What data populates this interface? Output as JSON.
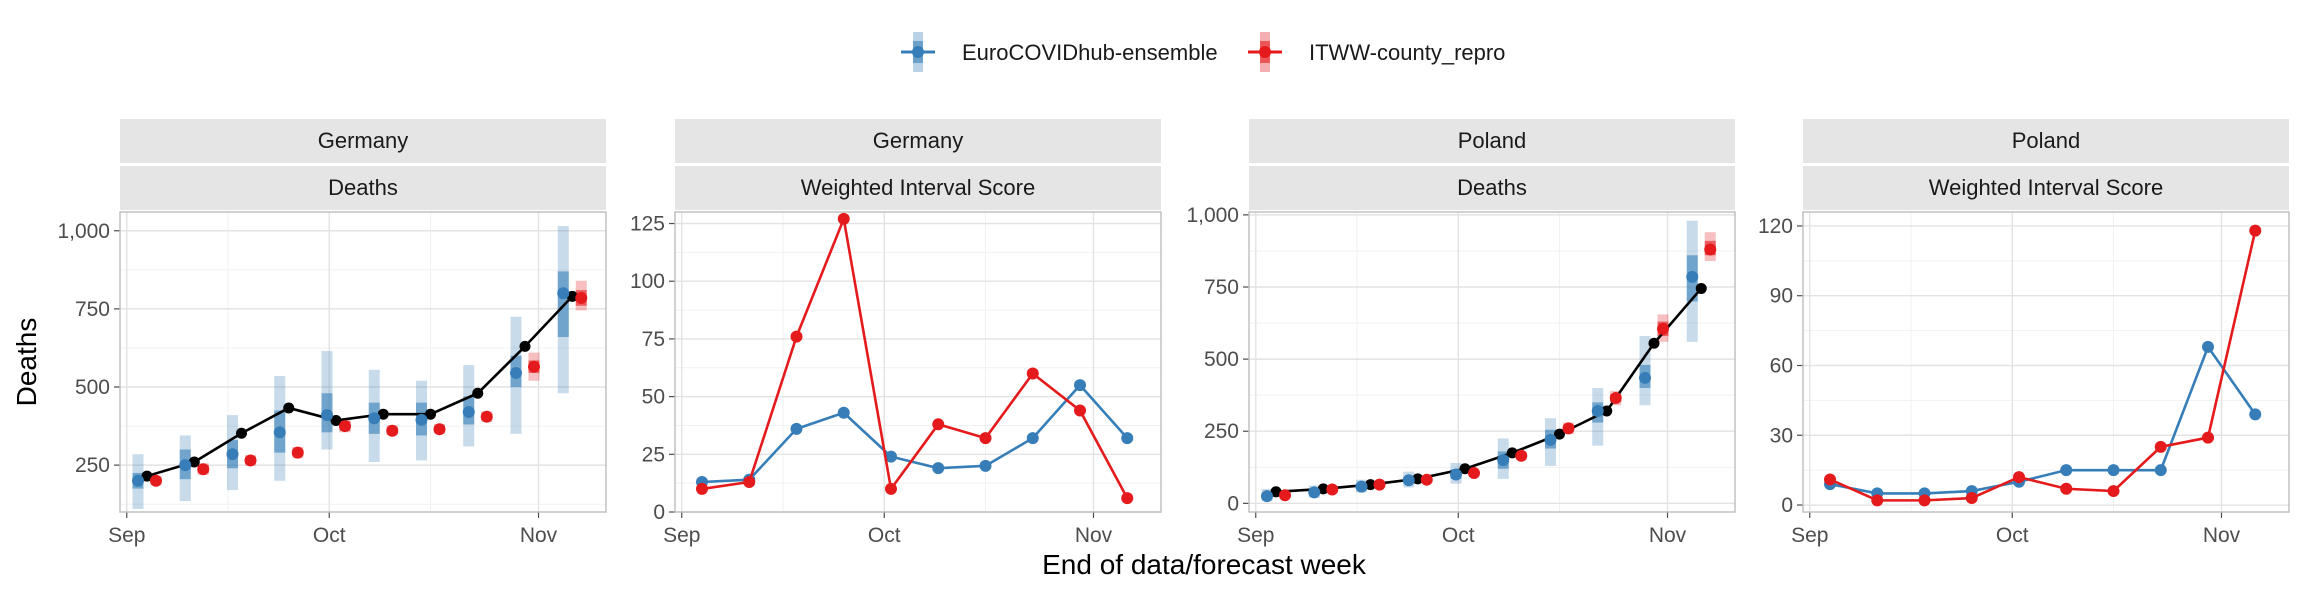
{
  "chart_data": {
    "type": "line",
    "xlabel": "End of data/forecast week",
    "x_dates": [
      "2021-09-04",
      "2021-09-11",
      "2021-09-18",
      "2021-09-25",
      "2021-10-02",
      "2021-10-09",
      "2021-10-16",
      "2021-10-23",
      "2021-10-30",
      "2021-11-06"
    ],
    "x_ticks": [
      {
        "label": "Sep",
        "date": "2021-09-01"
      },
      {
        "label": "Oct",
        "date": "2021-10-01"
      },
      {
        "label": "Nov",
        "date": "2021-11-01"
      }
    ],
    "xlim": [
      "2021-08-31",
      "2021-11-11"
    ],
    "legend": {
      "position": "top",
      "entries": [
        {
          "name": "EuroCOVIDhub-ensemble",
          "color": "#377eb8"
        },
        {
          "name": "ITWW-county_repro",
          "color": "#e41a1c"
        }
      ]
    },
    "colors": {
      "observed": "#000000",
      "ensemble": "#377eb8",
      "itww": "#e41a1c"
    },
    "grid": true,
    "panels": [
      {
        "strip": [
          "Germany",
          "Deaths"
        ],
        "ylabel": "Deaths",
        "ylim": [
          100,
          1060
        ],
        "yticks": [
          250,
          500,
          750,
          1000
        ],
        "yticklabels": [
          "250",
          "500",
          "750",
          "1,000"
        ],
        "observed": [
          215,
          260,
          352,
          433,
          393,
          413,
          413,
          480,
          630,
          790
        ],
        "series": [
          {
            "name": "EuroCOVIDhub-ensemble",
            "median": [
              200,
              250,
              285,
              355,
              410,
              400,
              395,
              420,
              545,
              800
            ],
            "q25": [
              175,
              205,
              240,
              290,
              355,
              350,
              345,
              380,
              500,
              660
            ],
            "q75": [
              225,
              300,
              330,
              425,
              480,
              450,
              450,
              470,
              600,
              870
            ],
            "q05": [
              110,
              135,
              170,
              200,
              300,
              260,
              265,
              310,
              350,
              480
            ],
            "q95": [
              285,
              345,
              410,
              535,
              615,
              555,
              520,
              570,
              725,
              1015
            ]
          },
          {
            "name": "ITWW-county_repro",
            "median": [
              200,
              237,
              265,
              290,
              375,
              360,
              365,
              405,
              565,
              785
            ],
            "q25": [
              190,
              225,
              255,
              280,
              360,
              350,
              355,
              395,
              545,
              760
            ],
            "q75": [
              210,
              250,
              275,
              300,
              390,
              370,
              375,
              415,
              585,
              810
            ],
            "q05": [
              185,
              218,
              248,
              272,
              355,
              345,
              350,
              388,
              520,
              745
            ],
            "q95": [
              215,
              256,
              282,
              308,
              395,
              378,
              382,
              422,
              610,
              840
            ]
          }
        ]
      },
      {
        "strip": [
          "Germany",
          "Weighted Interval Score"
        ],
        "ylim": [
          0,
          130
        ],
        "yticks": [
          0,
          25,
          50,
          75,
          100,
          125
        ],
        "yticklabels": [
          "0",
          "25",
          "50",
          "75",
          "100",
          "125"
        ],
        "series": [
          {
            "name": "EuroCOVIDhub-ensemble",
            "values": [
              13,
              14,
              36,
              43,
              24,
              19,
              20,
              32,
              55,
              32
            ]
          },
          {
            "name": "ITWW-county_repro",
            "values": [
              10,
              13,
              76,
              127,
              10,
              38,
              32,
              60,
              44,
              6
            ]
          }
        ]
      },
      {
        "strip": [
          "Poland",
          "Deaths"
        ],
        "ylim": [
          -30,
          1010
        ],
        "yticks": [
          0,
          250,
          500,
          750,
          1000
        ],
        "yticklabels": [
          "0",
          "250",
          "500",
          "750",
          "1,000"
        ],
        "observed": [
          40,
          50,
          65,
          85,
          120,
          175,
          240,
          320,
          555,
          745
        ],
        "series": [
          {
            "name": "EuroCOVIDhub-ensemble",
            "median": [
              25,
              38,
              58,
              80,
              100,
              150,
              220,
              320,
              435,
              785
            ],
            "q25": [
              15,
              30,
              50,
              70,
              85,
              120,
              190,
              280,
              400,
              700
            ],
            "q75": [
              35,
              48,
              68,
              92,
              118,
              180,
              255,
              350,
              480,
              860
            ],
            "q05": [
              8,
              20,
              38,
              55,
              68,
              85,
              130,
              200,
              340,
              560
            ],
            "q95": [
              50,
              62,
              82,
              110,
              140,
              225,
              295,
              400,
              580,
              980
            ]
          },
          {
            "name": "ITWW-county_repro",
            "median": [
              28,
              48,
              65,
              82,
              105,
              165,
              260,
              365,
              605,
              880
            ],
            "q25": [
              24,
              44,
              60,
              77,
              100,
              158,
              250,
              352,
              580,
              860
            ],
            "q75": [
              32,
              52,
              70,
              87,
              110,
              172,
              270,
              378,
              630,
              910
            ],
            "q05": [
              20,
              40,
              56,
              72,
              95,
              150,
              240,
              340,
              560,
              840
            ],
            "q95": [
              36,
              56,
              74,
              92,
              115,
              180,
              280,
              390,
              655,
              940
            ]
          }
        ]
      },
      {
        "strip": [
          "Poland",
          "Weighted Interval Score"
        ],
        "ylim": [
          -3,
          126
        ],
        "yticks": [
          0,
          30,
          60,
          90,
          120
        ],
        "yticklabels": [
          "0",
          "30",
          "60",
          "90",
          "120"
        ],
        "series": [
          {
            "name": "EuroCOVIDhub-ensemble",
            "values": [
              9,
              5,
              5,
              6,
              10,
              15,
              15,
              15,
              68,
              39
            ]
          },
          {
            "name": "ITWW-county_repro",
            "values": [
              11,
              2,
              2,
              3,
              12,
              7,
              6,
              25,
              29,
              118
            ]
          }
        ]
      }
    ]
  }
}
